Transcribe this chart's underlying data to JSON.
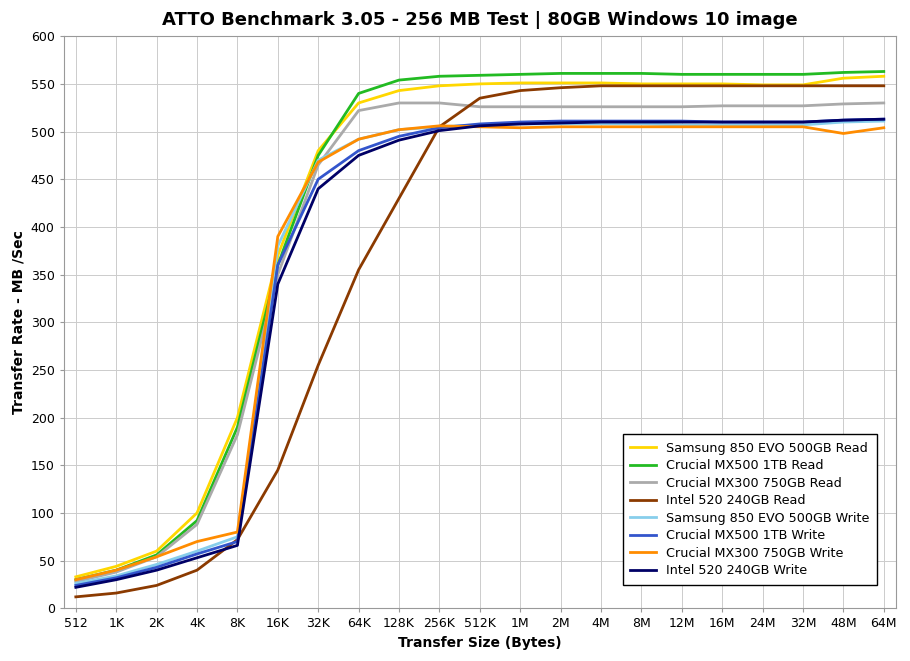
{
  "title": "ATTO Benchmark 3.05 - 256 MB Test | 80GB Windows 10 image",
  "xlabel": "Transfer Size (Bytes)",
  "ylabel": "Transfer Rate - MB /Sec",
  "x_labels": [
    "512",
    "1K",
    "2K",
    "4K",
    "8K",
    "16K",
    "32K",
    "64K",
    "128K",
    "256K",
    "512K",
    "1M",
    "2M",
    "4M",
    "8M",
    "12M",
    "16M",
    "24M",
    "32M",
    "48M",
    "64M"
  ],
  "ylim": [
    0,
    600
  ],
  "yticks": [
    0,
    50,
    100,
    150,
    200,
    250,
    300,
    350,
    400,
    450,
    500,
    550,
    600
  ],
  "series": [
    {
      "label": "Samsung 850 EVO 500GB Read",
      "color": "#FFD700",
      "linewidth": 2.0,
      "linestyle": "-",
      "values": [
        33,
        44,
        60,
        100,
        200,
        370,
        480,
        530,
        543,
        548,
        550,
        551,
        551,
        551,
        550,
        550,
        550,
        549,
        549,
        556,
        558
      ]
    },
    {
      "label": "Crucial MX500 1TB Read",
      "color": "#22BB22",
      "linewidth": 2.0,
      "linestyle": "-",
      "values": [
        30,
        40,
        56,
        92,
        190,
        360,
        475,
        540,
        554,
        558,
        559,
        560,
        561,
        561,
        561,
        560,
        560,
        560,
        560,
        562,
        563
      ]
    },
    {
      "label": "Crucial MX300 750GB Read",
      "color": "#AAAAAA",
      "linewidth": 2.0,
      "linestyle": "-",
      "values": [
        28,
        38,
        54,
        88,
        182,
        350,
        465,
        522,
        530,
        530,
        526,
        526,
        526,
        526,
        526,
        526,
        527,
        527,
        527,
        529,
        530
      ]
    },
    {
      "label": "Intel 520 240GB Read",
      "color": "#8B3A00",
      "linewidth": 2.0,
      "linestyle": "-",
      "values": [
        12,
        16,
        24,
        40,
        72,
        145,
        255,
        355,
        430,
        505,
        535,
        543,
        546,
        548,
        548,
        548,
        548,
        548,
        548,
        548,
        548
      ]
    },
    {
      "label": "Samsung 850 EVO 500GB Write",
      "color": "#87CEEB",
      "linewidth": 2.0,
      "linestyle": "-",
      "values": [
        26,
        34,
        46,
        60,
        75,
        380,
        470,
        492,
        502,
        505,
        507,
        508,
        508,
        508,
        508,
        507,
        507,
        507,
        507,
        510,
        511
      ]
    },
    {
      "label": "Crucial MX500 1TB Write",
      "color": "#3355CC",
      "linewidth": 2.0,
      "linestyle": "-",
      "values": [
        24,
        32,
        43,
        57,
        70,
        360,
        450,
        480,
        495,
        504,
        508,
        510,
        511,
        511,
        511,
        511,
        510,
        510,
        510,
        512,
        513
      ]
    },
    {
      "label": "Crucial MX300 750GB Write",
      "color": "#FF8C00",
      "linewidth": 2.0,
      "linestyle": "-",
      "values": [
        30,
        40,
        54,
        70,
        80,
        390,
        468,
        492,
        502,
        506,
        505,
        504,
        505,
        505,
        505,
        505,
        505,
        505,
        505,
        498,
        504
      ]
    },
    {
      "label": "Intel 520 240GB Write",
      "color": "#000066",
      "linewidth": 2.0,
      "linestyle": "-",
      "values": [
        22,
        30,
        40,
        53,
        66,
        340,
        440,
        475,
        491,
        501,
        506,
        508,
        509,
        510,
        510,
        510,
        510,
        510,
        510,
        512,
        513
      ]
    }
  ],
  "background_color": "#FFFFFF",
  "grid_color": "#CCCCCC",
  "title_fontsize": 13,
  "axis_label_fontsize": 10,
  "tick_fontsize": 9
}
